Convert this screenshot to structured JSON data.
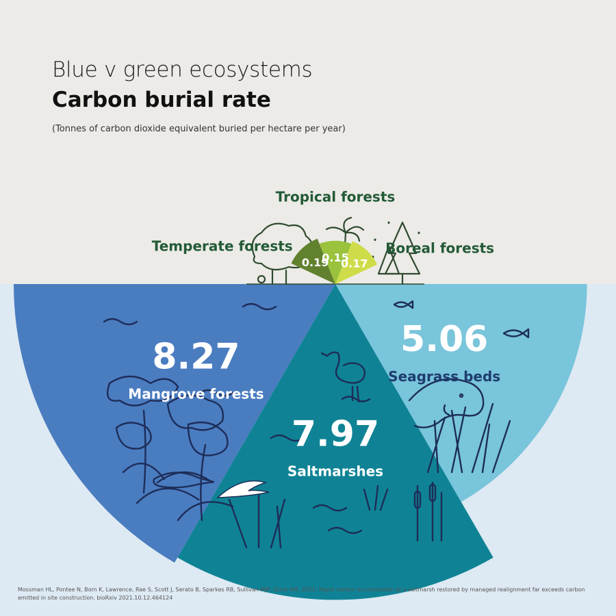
{
  "header": {
    "title": "Blue v green ecosystems",
    "subtitle": "Carbon burial rate",
    "unit_note": "(Tonnes of carbon dioxide equivalent buried per hectare per year)"
  },
  "chart_data": {
    "type": "pie",
    "title": "Carbon burial rate",
    "subtitle": "(Tonnes of carbon dioxide equivalent buried per hectare per year)",
    "slices": [
      {
        "label": "Mangrove forests",
        "value": 8.27,
        "value_label": "8.27",
        "group": "blue",
        "color": "#4a7cc0"
      },
      {
        "label": "Saltmarshes",
        "value": 7.97,
        "value_label": "7.97",
        "group": "blue",
        "color": "#0f8395"
      },
      {
        "label": "Seagrass beds",
        "value": 5.06,
        "value_label": "5.06",
        "group": "blue",
        "color": "#79c5db"
      },
      {
        "label": "Temperate forests",
        "value": 0.19,
        "value_label": "0.19",
        "group": "green",
        "color": "#62812f"
      },
      {
        "label": "Tropical forests",
        "value": 0.15,
        "value_label": "0.15",
        "group": "green",
        "color": "#9ac23c"
      },
      {
        "label": "Boreal forests",
        "value": 0.17,
        "value_label": "0.17",
        "group": "green",
        "color": "#cfdc4a"
      }
    ]
  },
  "colors": {
    "sky": "#ecebe7",
    "sea": "#dde9f3",
    "green_label": "#235a36",
    "seagrass_label": "#1e3c6e",
    "illustration_line": "#1d2d58",
    "tree_line": "#2f4a2f"
  },
  "icons": [
    "deciduous-tree-icon",
    "palm-tree-icon",
    "conifer-tree-icon",
    "fish-icon",
    "heron-icon",
    "manatee-icon",
    "crocodile-icon",
    "wave-icon",
    "reed-icon"
  ],
  "credit": "Mossman HL, Pontee N, Born K, Lawrence, Rae S, Scott J, Serato B, Sparkes RB, Sullivan MJP, Dunk RM, 2021. Rapid carbon accumulation at a saltmarsh restored by managed realignment far exceeds carbon emitted in site construction. bioRxiv 2021.10.12.464124"
}
